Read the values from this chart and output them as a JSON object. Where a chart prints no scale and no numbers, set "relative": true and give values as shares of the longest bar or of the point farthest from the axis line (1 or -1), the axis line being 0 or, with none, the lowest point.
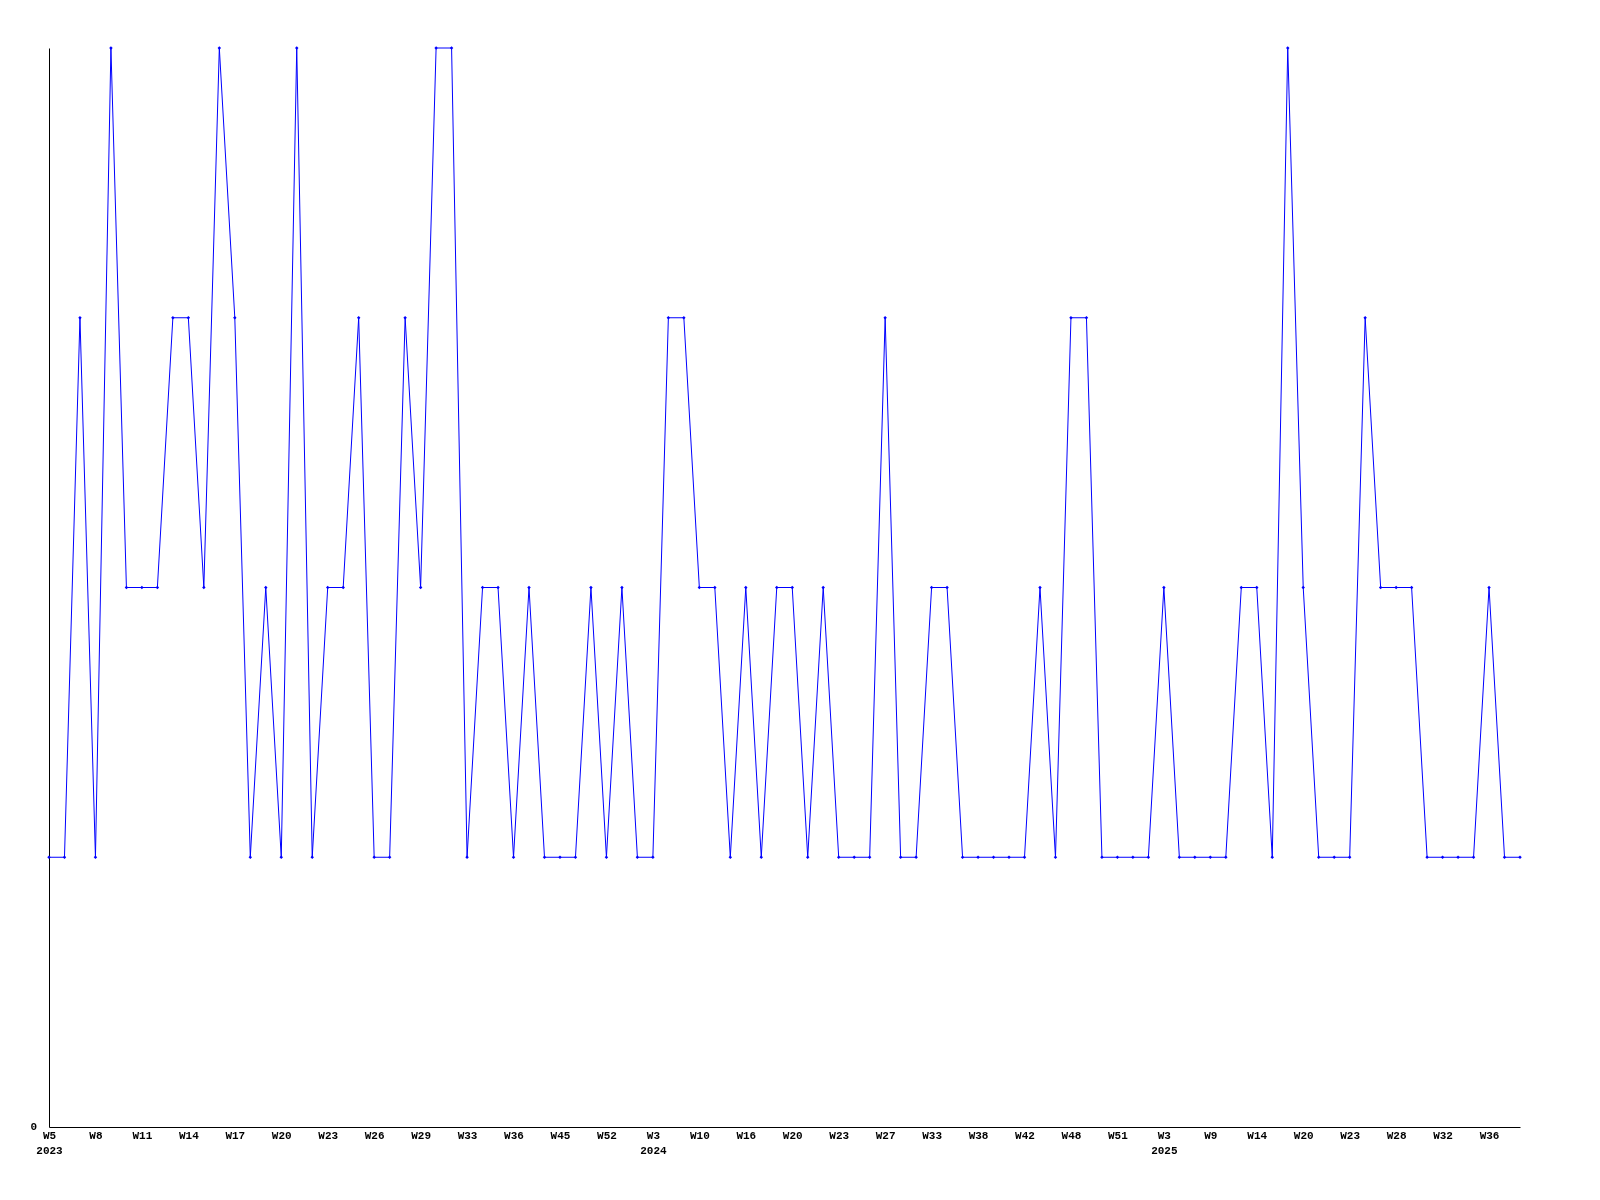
{
  "chart_data": {
    "type": "line",
    "relative": true,
    "annotations": [
      "0"
    ],
    "color": "#0000ff",
    "marker": "diamond",
    "line_style": "solid",
    "grid": false,
    "categories": [
      "W5\n2023",
      null,
      null,
      "W8",
      null,
      null,
      "W11",
      null,
      null,
      "W14",
      null,
      null,
      "W17",
      null,
      null,
      "W20",
      null,
      null,
      "W23",
      null,
      null,
      "W26",
      null,
      null,
      "W29",
      null,
      null,
      "W33",
      null,
      null,
      "W36",
      null,
      null,
      "W45",
      null,
      null,
      "W52",
      null,
      null,
      "W3\n2024",
      null,
      null,
      "W10",
      null,
      null,
      "W16",
      null,
      null,
      "W20",
      null,
      null,
      "W23",
      null,
      null,
      "W27",
      null,
      null,
      "W33",
      null,
      null,
      "W38",
      null,
      null,
      "W42",
      null,
      null,
      "W48",
      null,
      null,
      "W51",
      null,
      null,
      "W3\n2025",
      null,
      null,
      "W9",
      null,
      null,
      "W14",
      null,
      null,
      "W20",
      null,
      null,
      "W23",
      null,
      null,
      "W28",
      null,
      null,
      "W32",
      null,
      null,
      "W36",
      null,
      null
    ],
    "values": [
      0.25,
      0.25,
      0.75,
      0.25,
      1,
      0.5,
      0.5,
      0.5,
      0.75,
      0.75,
      0.5,
      1,
      0.75,
      0.25,
      0.5,
      0.25,
      1,
      0.25,
      0.5,
      0.5,
      0.75,
      0.25,
      0.25,
      0.75,
      0.5,
      1,
      1,
      0.25,
      0.5,
      0.5,
      0.25,
      0.5,
      0.25,
      0.25,
      0.25,
      0.5,
      0.25,
      0.5,
      0.25,
      0.25,
      0.75,
      0.75,
      0.5,
      0.5,
      0.25,
      0.5,
      0.25,
      0.5,
      0.5,
      0.25,
      0.5,
      0.25,
      0.25,
      0.25,
      0.75,
      0.25,
      0.25,
      0.5,
      0.5,
      0.25,
      0.25,
      0.25,
      0.25,
      0.25,
      0.5,
      0.25,
      0.75,
      0.75,
      0.25,
      0.25,
      0.25,
      0.25,
      0.5,
      0.25,
      0.25,
      0.25,
      0.25,
      0.5,
      0.5,
      0.25,
      1,
      0.5,
      0.25,
      0.25,
      0.25,
      0.75,
      0.5,
      0.5,
      0.5,
      0.25,
      0.25,
      0.25,
      0.25,
      0.5,
      0.25,
      0.25
    ]
  }
}
